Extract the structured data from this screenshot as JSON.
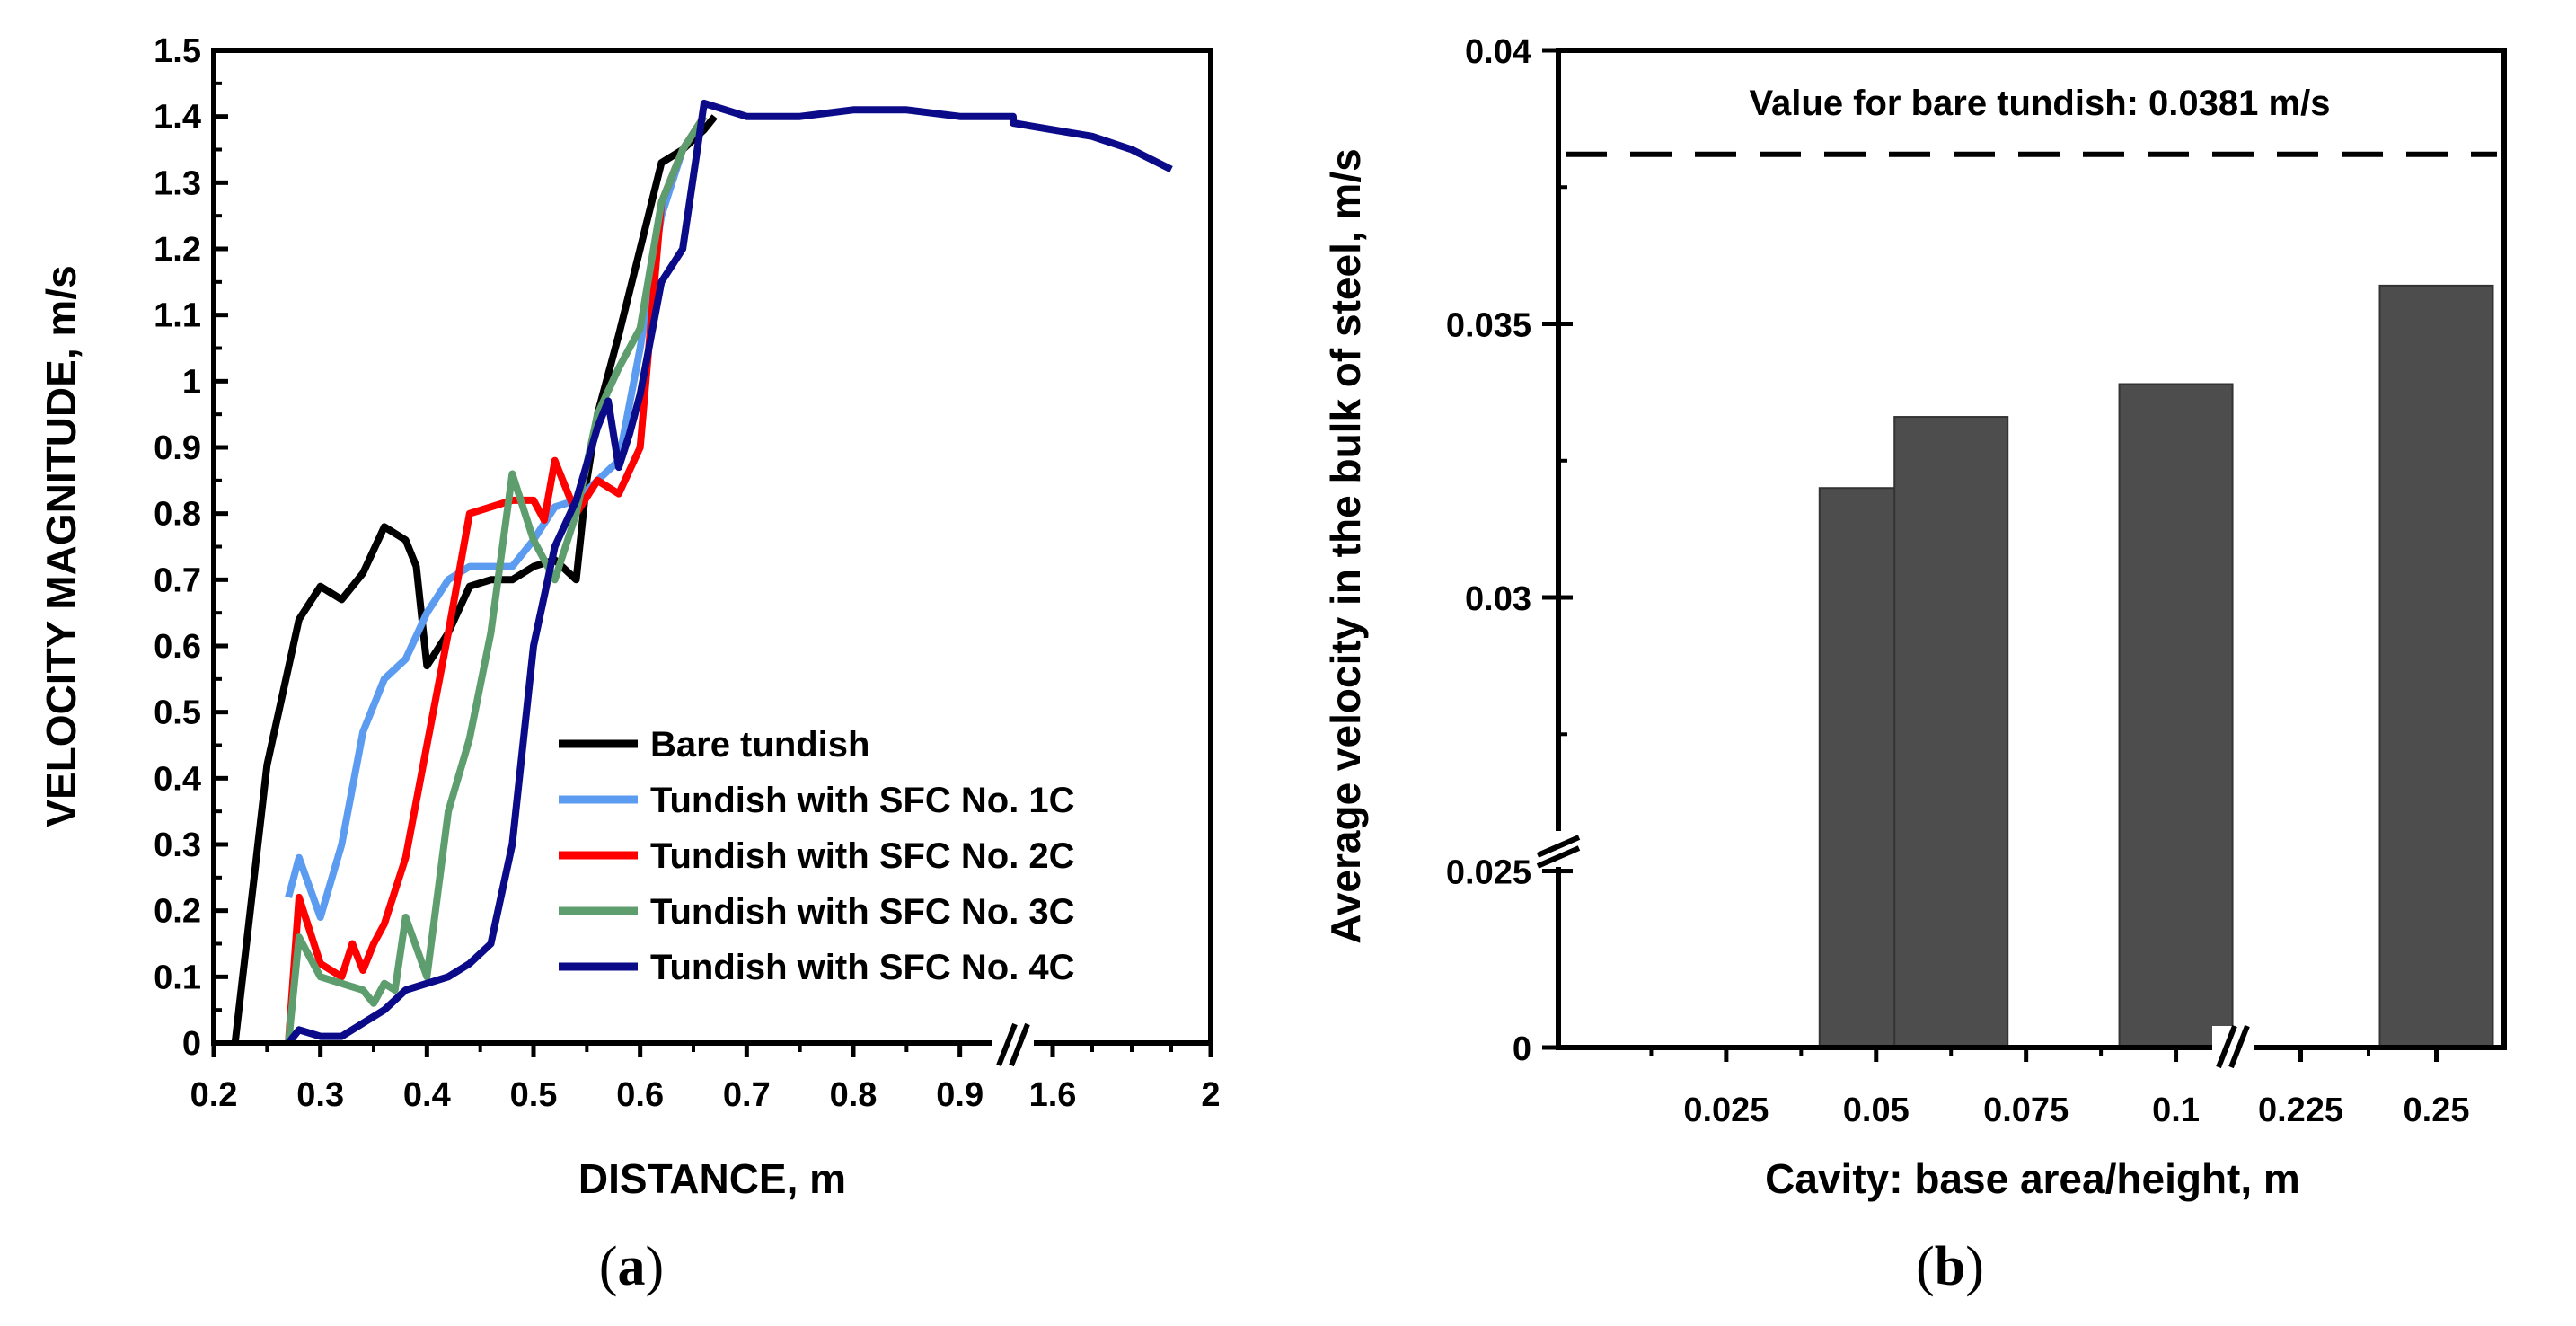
{
  "chart_data": [
    {
      "type": "line",
      "panel_label": "a",
      "xlabel": "DISTANCE, m",
      "ylabel": "VELOCITY MAGNITUDE, m/s",
      "xlim": [
        0.2,
        2.0
      ],
      "ylim": [
        0,
        1.5
      ],
      "axis_break": "between 0.95 and 1.5 on x-axis",
      "x_ticks": [
        "0.2",
        "0.3",
        "0.4",
        "0.5",
        "0.6",
        "0.7",
        "0.8",
        "0.9",
        "1.6",
        "2"
      ],
      "y_ticks": [
        "0",
        "0.1",
        "0.2",
        "0.3",
        "0.4",
        "0.5",
        "0.6",
        "0.7",
        "0.8",
        "0.9",
        "1",
        "1.1",
        "1.2",
        "1.3",
        "1.4",
        "1.5"
      ],
      "legend_position": "lower-right",
      "series": [
        {
          "name": "Bare tundish",
          "color": "#000000",
          "x": [
            0.22,
            0.25,
            0.28,
            0.3,
            0.32,
            0.34,
            0.36,
            0.38,
            0.39,
            0.4,
            0.42,
            0.44,
            0.46,
            0.48,
            0.5,
            0.52,
            0.54,
            0.55,
            0.56,
            0.58,
            0.6,
            0.62,
            0.64,
            0.66,
            0.67
          ],
          "y": [
            0.0,
            0.42,
            0.64,
            0.69,
            0.67,
            0.71,
            0.78,
            0.76,
            0.72,
            0.57,
            0.62,
            0.69,
            0.7,
            0.7,
            0.72,
            0.73,
            0.7,
            0.85,
            0.95,
            1.07,
            1.2,
            1.33,
            1.35,
            1.38,
            1.4
          ]
        },
        {
          "name": "Tundish with SFC No. 1C",
          "color": "#5b9bf0",
          "x": [
            0.27,
            0.28,
            0.3,
            0.32,
            0.34,
            0.36,
            0.38,
            0.4,
            0.42,
            0.44,
            0.46,
            0.48,
            0.5,
            0.52,
            0.54,
            0.56,
            0.58,
            0.6,
            0.62,
            0.64,
            0.66
          ],
          "y": [
            0.22,
            0.28,
            0.19,
            0.3,
            0.47,
            0.55,
            0.58,
            0.65,
            0.7,
            0.72,
            0.72,
            0.72,
            0.76,
            0.81,
            0.82,
            0.85,
            0.88,
            1.05,
            1.25,
            1.35,
            1.4
          ]
        },
        {
          "name": "Tundish with SFC No. 2C",
          "color": "#ff0000",
          "x": [
            0.27,
            0.28,
            0.3,
            0.32,
            0.33,
            0.34,
            0.35,
            0.36,
            0.38,
            0.4,
            0.42,
            0.44,
            0.46,
            0.48,
            0.5,
            0.51,
            0.52,
            0.54,
            0.56,
            0.58,
            0.6,
            0.62,
            0.64,
            0.66
          ],
          "y": [
            0.0,
            0.22,
            0.12,
            0.1,
            0.15,
            0.11,
            0.15,
            0.18,
            0.28,
            0.45,
            0.62,
            0.8,
            0.81,
            0.82,
            0.82,
            0.79,
            0.88,
            0.8,
            0.85,
            0.83,
            0.9,
            1.27,
            1.35,
            1.4
          ]
        },
        {
          "name": "Tundish with SFC No. 3C",
          "color": "#5e9e6e",
          "x": [
            0.27,
            0.28,
            0.3,
            0.32,
            0.34,
            0.35,
            0.36,
            0.37,
            0.38,
            0.4,
            0.42,
            0.44,
            0.46,
            0.48,
            0.5,
            0.52,
            0.54,
            0.56,
            0.58,
            0.6,
            0.62,
            0.64,
            0.66
          ],
          "y": [
            0.0,
            0.16,
            0.1,
            0.09,
            0.08,
            0.06,
            0.09,
            0.08,
            0.19,
            0.1,
            0.35,
            0.46,
            0.62,
            0.86,
            0.76,
            0.7,
            0.8,
            0.95,
            1.02,
            1.08,
            1.27,
            1.35,
            1.4
          ]
        },
        {
          "name": "Tundish with SFC No. 4C",
          "color": "#0b0b8a",
          "x": [
            0.27,
            0.28,
            0.3,
            0.32,
            0.34,
            0.36,
            0.38,
            0.4,
            0.42,
            0.44,
            0.46,
            0.48,
            0.5,
            0.52,
            0.54,
            0.56,
            0.57,
            0.58,
            0.59,
            0.6,
            0.62,
            0.64,
            0.66,
            0.68,
            0.7,
            0.75,
            0.8,
            0.85,
            0.9,
            0.95,
            1.5,
            1.6,
            1.7,
            1.8,
            1.9
          ],
          "y": [
            0.0,
            0.02,
            0.01,
            0.01,
            0.03,
            0.05,
            0.08,
            0.09,
            0.1,
            0.12,
            0.15,
            0.3,
            0.6,
            0.75,
            0.82,
            0.93,
            0.97,
            0.87,
            0.92,
            0.98,
            1.15,
            1.2,
            1.42,
            1.41,
            1.4,
            1.4,
            1.41,
            1.41,
            1.4,
            1.4,
            1.39,
            1.38,
            1.37,
            1.35,
            1.32
          ]
        }
      ]
    },
    {
      "type": "bar",
      "panel_label": "b",
      "xlabel": "Cavity: base area/height, m",
      "ylabel": "Average velocity in the bulk of steel, m/s",
      "y_ticks": [
        "0",
        "0.025",
        "0.03",
        "0.035",
        "0.04"
      ],
      "x_ticks": [
        "0.025",
        "0.05",
        "0.075",
        "0.1",
        "0.225",
        "0.25"
      ],
      "ylim_upper": [
        0.0245,
        0.04
      ],
      "axis_break_y": "between 0 and 0.0245",
      "axis_break_x": "between 0.1 and 0.225",
      "reference_line": {
        "value": 0.0381,
        "label": "Value for bare tundish: 0.0381 m/s",
        "style": "dashed"
      },
      "bar_color": "#4d4d4d",
      "bars": [
        {
          "x": 0.05,
          "value": 0.032
        },
        {
          "x": 0.0625,
          "value": 0.0333
        },
        {
          "x": 0.1,
          "value": 0.0339
        },
        {
          "x": 0.25,
          "value": 0.0357
        }
      ]
    }
  ]
}
